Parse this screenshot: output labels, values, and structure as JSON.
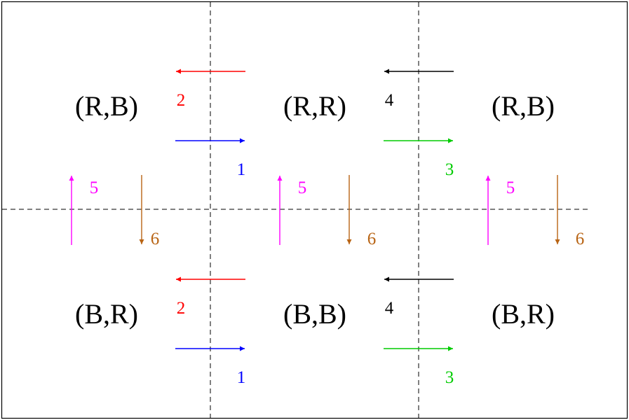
{
  "colors": {
    "move1": "#0000ff",
    "move2": "#ff0000",
    "move3": "#00cc00",
    "move4": "#000000",
    "move5": "#ff00ff",
    "move6": "#b86414",
    "grid": "#000000"
  },
  "cells": {
    "top_left": "(R,B)",
    "top_middle": "(R,R)",
    "top_right": "(R,B)",
    "bottom_left": "(B,R)",
    "bottom_middle": "(B,B)",
    "bottom_right": "(B,R)"
  },
  "moves": {
    "m1": "1",
    "m2": "2",
    "m3": "3",
    "m4": "4",
    "m5": "5",
    "m6": "6"
  }
}
